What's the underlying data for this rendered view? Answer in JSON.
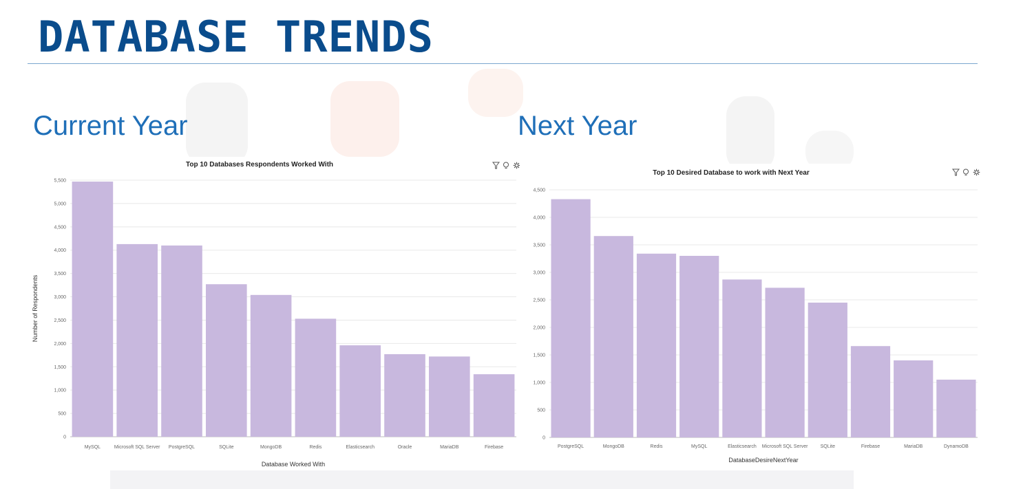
{
  "slide": {
    "title": "DATABASE TRENDS",
    "left_label": "Current Year",
    "right_label": "Next Year"
  },
  "colors": {
    "title": "#0a4c8c",
    "label": "#1f6fb8",
    "bar": "#c8b8de",
    "grid": "#e8e8e8"
  },
  "toolbar_icons": [
    "filter-icon",
    "lightbulb-icon",
    "settings-icon"
  ],
  "chart_data": [
    {
      "type": "bar",
      "title": "Top 10 Databases Respondents Worked With",
      "xlabel": "Database Worked With",
      "ylabel": "Number of Respondents",
      "ylim": [
        0,
        5500
      ],
      "yticks": [
        0,
        500,
        1000,
        1500,
        2000,
        2500,
        3000,
        3500,
        4000,
        4500,
        5000,
        5500
      ],
      "ytick_labels": [
        "0",
        "500",
        "1,000",
        "1,500",
        "2,000",
        "2,500",
        "3,000",
        "3,500",
        "4,000",
        "4,500",
        "5,000",
        "5,500"
      ],
      "categories": [
        "MySQL",
        "Microsoft SQL Server",
        "PostgreSQL",
        "SQLite",
        "MongoDB",
        "Redis",
        "Elasticsearch",
        "Oracle",
        "MariaDB",
        "Firebase"
      ],
      "values": [
        5470,
        4130,
        4100,
        3270,
        3040,
        2530,
        1960,
        1770,
        1720,
        1340
      ],
      "grid": true
    },
    {
      "type": "bar",
      "title": "Top 10 Desired Database to work with Next Year",
      "xlabel": "DatabaseDesireNextYear",
      "ylabel": "",
      "ylim": [
        0,
        4500
      ],
      "yticks": [
        0,
        500,
        1000,
        1500,
        2000,
        2500,
        3000,
        3500,
        4000,
        4500
      ],
      "ytick_labels": [
        "0",
        "500",
        "1,000",
        "1,500",
        "2,000",
        "2,500",
        "3,000",
        "3,500",
        "4,000",
        "4,500"
      ],
      "categories": [
        "PostgreSQL",
        "MongoDB",
        "Redis",
        "MySQL",
        "Elasticsearch",
        "Microsoft SQL Server",
        "SQLite",
        "Firebase",
        "MariaDB",
        "DynamoDB"
      ],
      "values": [
        4330,
        3660,
        3340,
        3300,
        2870,
        2720,
        2450,
        1660,
        1400,
        1050
      ],
      "grid": true
    }
  ]
}
